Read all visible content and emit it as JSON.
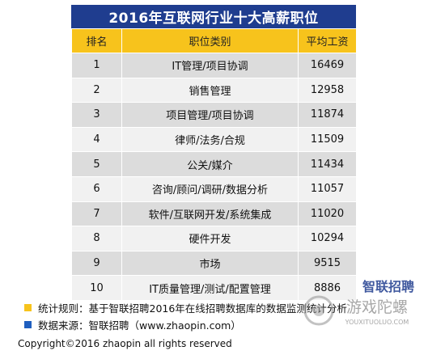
{
  "title": "2016年互联网行业十大高薪职位",
  "headers": {
    "rank": "排名",
    "category": "职位类别",
    "salary": "平均工资"
  },
  "rows": [
    {
      "rank": "1",
      "category": "IT管理/项目协调",
      "salary": "16469"
    },
    {
      "rank": "2",
      "category": "销售管理",
      "salary": "12958"
    },
    {
      "rank": "3",
      "category": "项目管理/项目协调",
      "salary": "11874"
    },
    {
      "rank": "4",
      "category": "律师/法务/合规",
      "salary": "11509"
    },
    {
      "rank": "5",
      "category": "公关/媒介",
      "salary": "11434"
    },
    {
      "rank": "6",
      "category": "咨询/顾问/调研/数据分析",
      "salary": "11057"
    },
    {
      "rank": "7",
      "category": "软件/互联网开发/系统集成",
      "salary": "11020"
    },
    {
      "rank": "8",
      "category": "硬件开发",
      "salary": "10294"
    },
    {
      "rank": "9",
      "category": "市场",
      "salary": "9515"
    },
    {
      "rank": "10",
      "category": "IT质量管理/测试/配置管理",
      "salary": "8886"
    }
  ],
  "notes": {
    "rule": "统计规则：基于智联招聘2016年在线招聘数据库的数据监测统计分析",
    "source": "数据来源：智联招聘（www.zhaopin.com）"
  },
  "copyright": "Copyright©2016 zhaopin all rights reserved",
  "watermark": {
    "brand": "智联招聘",
    "site_name": "游戏陀螺",
    "site_url": "YOUXITUOLUO.COM"
  },
  "colors": {
    "title_bg": "#1f3d8f",
    "header_bg": "#f7c31c",
    "note_yellow": "#f7c31c",
    "note_blue": "#1f5fbf"
  }
}
